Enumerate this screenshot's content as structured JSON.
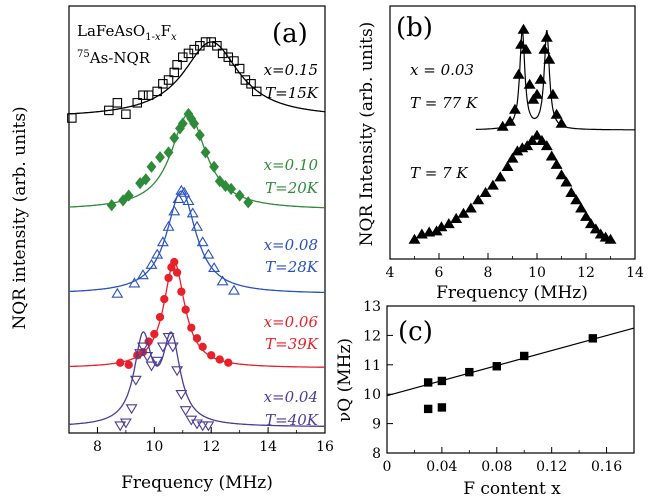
{
  "chart_data": [
    {
      "panel": "(a)",
      "type": "scatter",
      "title_lines": [
        "LaFeAsO1-xFx",
        "75As-NQR"
      ],
      "xlabel": "Frequency (MHz)",
      "ylabel": "NQR intensity (arb. units)",
      "xlim": [
        7,
        16
      ],
      "xticks": [
        8,
        10,
        12,
        14,
        16
      ],
      "xtick_labels": [
        "8",
        "10",
        "12",
        "14",
        "16"
      ],
      "series": [
        {
          "label_x": "x=0.15",
          "label_T": "T=15K",
          "color": "#000000",
          "marker": "open-square",
          "fit": {
            "kind": "lorentzian",
            "center": 12.0,
            "width": 2.4
          },
          "points": [
            [
              7.1,
              0.0
            ],
            [
              8.4,
              0.1
            ],
            [
              8.7,
              0.2
            ],
            [
              9.0,
              0.05
            ],
            [
              9.4,
              0.2
            ],
            [
              9.6,
              0.3
            ],
            [
              9.8,
              0.3
            ],
            [
              10.1,
              0.35
            ],
            [
              10.3,
              0.45
            ],
            [
              10.5,
              0.5
            ],
            [
              10.7,
              0.6
            ],
            [
              10.8,
              0.7
            ],
            [
              11.0,
              0.8
            ],
            [
              11.2,
              0.85
            ],
            [
              11.4,
              0.9
            ],
            [
              11.6,
              0.95
            ],
            [
              11.8,
              1.0
            ],
            [
              12.0,
              1.0
            ],
            [
              12.2,
              0.95
            ],
            [
              12.4,
              0.85
            ],
            [
              12.6,
              0.8
            ],
            [
              12.8,
              0.75
            ],
            [
              13.0,
              0.65
            ],
            [
              13.2,
              0.5
            ],
            [
              13.4,
              0.45
            ],
            [
              13.6,
              0.35
            ]
          ]
        },
        {
          "label_x": "x=0.10",
          "label_T": "T=20K",
          "color": "#2e8b3a",
          "marker": "filled-diamond",
          "fit": {
            "kind": "lorentzian",
            "center": 11.2,
            "width": 1.5
          },
          "points": [
            [
              8.5,
              0.05
            ],
            [
              8.9,
              0.1
            ],
            [
              9.1,
              0.15
            ],
            [
              9.5,
              0.28
            ],
            [
              9.7,
              0.32
            ],
            [
              9.9,
              0.45
            ],
            [
              10.2,
              0.55
            ],
            [
              10.5,
              0.6
            ],
            [
              10.7,
              0.75
            ],
            [
              10.9,
              0.85
            ],
            [
              11.0,
              0.9
            ],
            [
              11.2,
              1.0
            ],
            [
              11.3,
              0.95
            ],
            [
              11.4,
              0.9
            ],
            [
              11.6,
              0.78
            ],
            [
              11.8,
              0.6
            ],
            [
              12.1,
              0.45
            ],
            [
              12.3,
              0.3
            ],
            [
              12.5,
              0.25
            ],
            [
              12.7,
              0.22
            ],
            [
              13.0,
              0.15
            ],
            [
              13.3,
              0.08
            ]
          ]
        },
        {
          "label_x": "x=0.08",
          "label_T": "T=28K",
          "color": "#2a52be",
          "marker": "open-triangle-up",
          "fit": {
            "kind": "lorentzian",
            "center": 10.95,
            "width": 1.25
          },
          "points": [
            [
              8.7,
              0.0
            ],
            [
              9.3,
              0.1
            ],
            [
              9.6,
              0.18
            ],
            [
              9.9,
              0.28
            ],
            [
              10.1,
              0.38
            ],
            [
              10.3,
              0.5
            ],
            [
              10.5,
              0.65
            ],
            [
              10.7,
              0.8
            ],
            [
              10.85,
              0.92
            ],
            [
              10.95,
              1.0
            ],
            [
              11.05,
              0.98
            ],
            [
              11.2,
              0.9
            ],
            [
              11.35,
              0.78
            ],
            [
              11.5,
              0.65
            ],
            [
              11.7,
              0.5
            ],
            [
              11.9,
              0.38
            ],
            [
              12.1,
              0.25
            ],
            [
              12.4,
              0.12
            ],
            [
              12.8,
              0.03
            ]
          ]
        },
        {
          "label_x": "x=0.06",
          "label_T": "T=39K",
          "color": "#e8202a",
          "marker": "filled-circle",
          "fit": {
            "kind": "lorentzian",
            "center": 10.7,
            "width": 0.9
          },
          "points": [
            [
              8.8,
              0.05
            ],
            [
              9.1,
              0.03
            ],
            [
              9.4,
              0.12
            ],
            [
              9.6,
              0.15
            ],
            [
              9.8,
              0.25
            ],
            [
              10.0,
              0.32
            ],
            [
              10.2,
              0.48
            ],
            [
              10.35,
              0.65
            ],
            [
              10.5,
              0.85
            ],
            [
              10.6,
              0.95
            ],
            [
              10.7,
              1.0
            ],
            [
              10.8,
              0.9
            ],
            [
              10.95,
              0.72
            ],
            [
              11.1,
              0.55
            ],
            [
              11.3,
              0.38
            ],
            [
              11.5,
              0.28
            ],
            [
              11.7,
              0.2
            ],
            [
              12.0,
              0.12
            ],
            [
              12.3,
              0.08
            ],
            [
              12.6,
              0.05
            ]
          ]
        },
        {
          "label_x": "x=0.04",
          "label_T": "T=40K",
          "color": "#4b3d96",
          "marker": "open-triangle-down",
          "fit": {
            "kind": "double-lorentzian",
            "centers": [
              9.6,
              10.6
            ],
            "width": 0.75
          },
          "points": [
            [
              8.8,
              0.02
            ],
            [
              9.0,
              0.05
            ],
            [
              9.2,
              0.2
            ],
            [
              9.35,
              0.5
            ],
            [
              9.5,
              0.78
            ],
            [
              9.6,
              0.85
            ],
            [
              9.75,
              0.75
            ],
            [
              9.9,
              0.65
            ],
            [
              10.1,
              0.7
            ],
            [
              10.3,
              0.85
            ],
            [
              10.5,
              0.95
            ],
            [
              10.65,
              0.85
            ],
            [
              10.8,
              0.6
            ],
            [
              10.95,
              0.35
            ],
            [
              11.1,
              0.18
            ],
            [
              11.3,
              0.08
            ],
            [
              11.5,
              0.04
            ],
            [
              11.7,
              0.02
            ],
            [
              11.9,
              0.02
            ]
          ]
        }
      ]
    },
    {
      "panel": "(b)",
      "type": "scatter",
      "xlabel": "Frequency (MHz)",
      "ylabel": "NQR Intensity (arb. units)",
      "xlim": [
        4,
        14
      ],
      "xticks": [
        4,
        6,
        8,
        10,
        12,
        14
      ],
      "xtick_labels": [
        "4",
        "6",
        "8",
        "10",
        "12",
        "14"
      ],
      "annotations": {
        "x_label": "x = 0.03",
        "T_high": "T = 77 K",
        "T_low": "T = 7 K"
      },
      "series": [
        {
          "label": "T = 77 K",
          "color": "#000000",
          "marker": "filled-triangle-up",
          "fit": {
            "kind": "double-lorentzian",
            "centers": [
              9.4,
              10.4
            ],
            "width": 0.25
          },
          "points": [
            [
              8.6,
              0.03
            ],
            [
              8.9,
              0.08
            ],
            [
              9.1,
              0.2
            ],
            [
              9.25,
              0.55
            ],
            [
              9.35,
              0.85
            ],
            [
              9.45,
              1.0
            ],
            [
              9.55,
              0.8
            ],
            [
              9.7,
              0.45
            ],
            [
              9.85,
              0.3
            ],
            [
              10.0,
              0.35
            ],
            [
              10.15,
              0.5
            ],
            [
              10.3,
              0.8
            ],
            [
              10.4,
              0.92
            ],
            [
              10.5,
              0.7
            ],
            [
              10.65,
              0.35
            ],
            [
              10.8,
              0.15
            ],
            [
              11.0,
              0.06
            ]
          ]
        },
        {
          "label": "T = 7 K",
          "color": "#000000",
          "marker": "filled-triangle-up",
          "points": [
            [
              5.0,
              0.0
            ],
            [
              5.3,
              0.05
            ],
            [
              5.6,
              0.07
            ],
            [
              5.9,
              0.08
            ],
            [
              6.1,
              0.12
            ],
            [
              6.4,
              0.15
            ],
            [
              6.7,
              0.2
            ],
            [
              7.0,
              0.25
            ],
            [
              7.3,
              0.3
            ],
            [
              7.6,
              0.38
            ],
            [
              7.9,
              0.45
            ],
            [
              8.2,
              0.52
            ],
            [
              8.5,
              0.6
            ],
            [
              8.8,
              0.7
            ],
            [
              9.0,
              0.78
            ],
            [
              9.2,
              0.85
            ],
            [
              9.4,
              0.88
            ],
            [
              9.6,
              0.9
            ],
            [
              9.8,
              0.95
            ],
            [
              10.0,
              1.0
            ],
            [
              10.2,
              0.95
            ],
            [
              10.4,
              0.9
            ],
            [
              10.6,
              0.8
            ],
            [
              10.8,
              0.72
            ],
            [
              11.0,
              0.62
            ],
            [
              11.2,
              0.55
            ],
            [
              11.4,
              0.45
            ],
            [
              11.6,
              0.38
            ],
            [
              11.8,
              0.3
            ],
            [
              12.0,
              0.22
            ],
            [
              12.2,
              0.15
            ],
            [
              12.4,
              0.1
            ],
            [
              12.6,
              0.05
            ],
            [
              12.8,
              0.02
            ],
            [
              13.0,
              0.0
            ]
          ]
        }
      ]
    },
    {
      "panel": "(c)",
      "type": "scatter",
      "xlabel": "F content x",
      "ylabel": "νQ (MHz)",
      "xlim": [
        0,
        0.18
      ],
      "ylim": [
        8,
        13
      ],
      "xticks": [
        0,
        0.04,
        0.08,
        0.12,
        0.16
      ],
      "xtick_labels": [
        "0",
        "0.04",
        "0.08",
        "0.12",
        "0.16"
      ],
      "yticks": [
        8,
        9,
        10,
        11,
        12,
        13
      ],
      "ytick_labels": [
        "8",
        "9",
        "10",
        "11",
        "12",
        "13"
      ],
      "fit_line": {
        "x": [
          0,
          0.18
        ],
        "y": [
          9.95,
          12.25
        ]
      },
      "points": [
        [
          0.03,
          10.4
        ],
        [
          0.03,
          9.5
        ],
        [
          0.04,
          10.45
        ],
        [
          0.04,
          9.55
        ],
        [
          0.06,
          10.75
        ],
        [
          0.08,
          10.95
        ],
        [
          0.1,
          11.3
        ],
        [
          0.15,
          11.9
        ]
      ]
    }
  ]
}
